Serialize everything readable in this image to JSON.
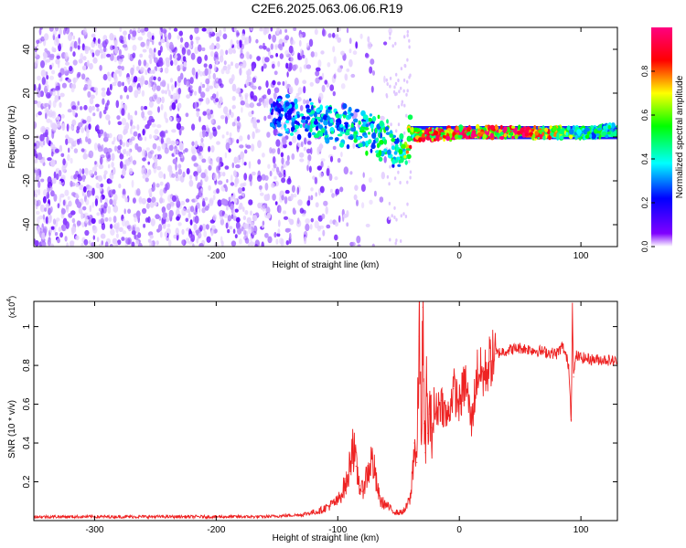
{
  "title": "C2E6.2025.063.06.06.R19",
  "colors": {
    "spectrogram_low": "#e6d2ff",
    "spectrogram_mid": "#7a1fff",
    "snr_line": "#ee2222",
    "axis": "#000000"
  },
  "chart_data": [
    {
      "type": "heatmap",
      "xlabel": "Height of straight line (km)",
      "ylabel": "Frequency (Hz)",
      "xlim": [
        -350,
        130
      ],
      "ylim": [
        -50,
        50
      ],
      "x_ticks": [
        -300,
        -200,
        -100,
        0,
        100
      ],
      "y_ticks": [
        -40,
        -20,
        0,
        20,
        40
      ],
      "colorbar": {
        "label": "Normalized spectral amplitude",
        "range": [
          0.0,
          1.0
        ],
        "ticks": [
          "0.0",
          "0.2",
          "0.4",
          "0.6",
          "0.8"
        ],
        "tick_values": [
          0.0,
          0.2,
          0.4,
          0.6,
          0.8
        ],
        "colormap": [
          "#ffffff",
          "#8000ff",
          "#0000ff",
          "#00ffff",
          "#00ff00",
          "#ffff00",
          "#ff0000",
          "#ff0080"
        ]
      },
      "features": [
        {
          "description": "diffuse noise",
          "x_range": [
            -350,
            -50
          ],
          "freq_range": [
            -50,
            50
          ],
          "amplitude": 0.15
        },
        {
          "description": "signal band",
          "x": [
            -150,
            -120,
            -100,
            -80,
            -60,
            -50,
            -40,
            -20,
            0,
            20,
            60,
            100,
            130
          ],
          "freq": [
            10,
            8,
            6,
            3,
            -2,
            -8,
            1,
            1,
            2,
            2,
            2,
            2,
            3
          ],
          "amplitude": [
            0.3,
            0.4,
            0.4,
            0.45,
            0.5,
            0.4,
            0.75,
            0.85,
            0.95,
            0.95,
            0.9,
            0.5,
            0.45
          ]
        }
      ]
    },
    {
      "type": "line",
      "xlabel": "Height of straight line (km)",
      "ylabel": "SNR (10 * v/v)",
      "y_multiplier": "(x10",
      "y_multiplier_exp": "4",
      "y_multiplier_close": ")",
      "xlim": [
        -350,
        130
      ],
      "ylim": [
        0,
        1.13
      ],
      "x_ticks": [
        -300,
        -200,
        -100,
        0,
        100
      ],
      "y_ticks": [
        0.2,
        0.4,
        0.6,
        0.8,
        1.0
      ],
      "y_tick_labels": [
        "0.2",
        "0.4",
        "0.6",
        "0.8",
        "1"
      ],
      "series": [
        {
          "x": [
            -350,
            -300,
            -250,
            -200,
            -160,
            -130,
            -115,
            -100,
            -95,
            -92,
            -90,
            -88,
            -85,
            -82,
            -80,
            -78,
            -75,
            -72,
            -70,
            -68,
            -65,
            -60,
            -55,
            -50,
            -45,
            -40,
            -37,
            -35,
            -33,
            -31,
            -30,
            -29,
            -28,
            -27,
            -26,
            -25,
            -23,
            -20,
            -15,
            -10,
            -5,
            0,
            5,
            10,
            15,
            20,
            25,
            30,
            40,
            50,
            60,
            70,
            80,
            85,
            90,
            92,
            93,
            94,
            96,
            100,
            110,
            120,
            130
          ],
          "y": [
            0.02,
            0.02,
            0.02,
            0.02,
            0.02,
            0.03,
            0.05,
            0.1,
            0.17,
            0.2,
            0.3,
            0.42,
            0.28,
            0.18,
            0.15,
            0.2,
            0.25,
            0.32,
            0.26,
            0.18,
            0.1,
            0.08,
            0.05,
            0.04,
            0.05,
            0.12,
            0.4,
            0.3,
            0.95,
            0.45,
            1.1,
            0.5,
            0.35,
            0.7,
            0.45,
            0.55,
            0.48,
            0.55,
            0.62,
            0.52,
            0.68,
            0.6,
            0.72,
            0.5,
            0.78,
            0.74,
            0.82,
            0.86,
            0.88,
            0.89,
            0.88,
            0.87,
            0.86,
            0.9,
            0.8,
            0.52,
            1.12,
            0.74,
            0.85,
            0.84,
            0.83,
            0.83,
            0.82
          ]
        }
      ]
    }
  ]
}
